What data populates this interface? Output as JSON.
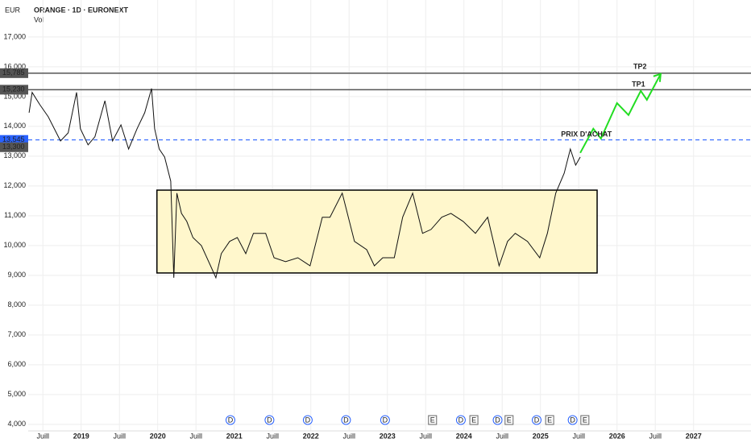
{
  "chart_data": {
    "type": "line",
    "currency": "EUR",
    "title": "ORANGE · 1D · EURONEXT",
    "subtitle": "Vol",
    "xlim": [
      2017.94,
      2027.75
    ],
    "ylim": [
      3.78,
      18.24
    ],
    "grid": true,
    "yticks": [
      {
        "value": 4,
        "label": "4,000"
      },
      {
        "value": 5,
        "label": "5,000"
      },
      {
        "value": 6,
        "label": "6,000"
      },
      {
        "value": 7,
        "label": "7,000"
      },
      {
        "value": 8,
        "label": "8,000"
      },
      {
        "value": 9,
        "label": "9,000"
      },
      {
        "value": 10,
        "label": "10,000"
      },
      {
        "value": 11,
        "label": "11,000"
      },
      {
        "value": 12,
        "label": "12,000"
      },
      {
        "value": 13,
        "label": "13,000"
      },
      {
        "value": 14,
        "label": "14,000"
      },
      {
        "value": 15,
        "label": "15,000"
      },
      {
        "value": 16,
        "label": "16,000"
      },
      {
        "value": 17,
        "label": "17,000"
      }
    ],
    "xticks": [
      {
        "value": 2018.5,
        "label": "Juill"
      },
      2019,
      {
        "value": 2019.5,
        "label": "Juill"
      },
      2020,
      {
        "value": 2020.5,
        "label": "Juill"
      },
      2021,
      {
        "value": 2021.5,
        "label": "Juill"
      },
      2022,
      {
        "value": 2022.5,
        "label": "Juill"
      },
      2023,
      {
        "value": 2023.5,
        "label": "Juill"
      },
      2024,
      {
        "value": 2024.5,
        "label": "Juill"
      },
      2025,
      {
        "value": 2025.5,
        "label": "Juill"
      },
      2026,
      {
        "value": 2026.5,
        "label": "Juill"
      },
      2027
    ],
    "price": {
      "color": "#111111",
      "x": [
        2018.32,
        2018.36,
        2018.46,
        2018.57,
        2018.73,
        2018.83,
        2018.94,
        2018.99,
        2019.09,
        2019.18,
        2019.31,
        2019.41,
        2019.52,
        2019.62,
        2019.73,
        2019.83,
        2019.92,
        2019.96,
        2020.02,
        2020.09,
        2020.17,
        2020.21,
        2020.25,
        2020.31,
        2020.38,
        2020.46,
        2020.57,
        2020.69,
        2020.76,
        2020.83,
        2020.94,
        2021.04,
        2021.15,
        2021.25,
        2021.41,
        2021.52,
        2021.67,
        2021.83,
        2021.99,
        2022.15,
        2022.25,
        2022.41,
        2022.57,
        2022.73,
        2022.83,
        2022.94,
        2023.09,
        2023.2,
        2023.33,
        2023.46,
        2023.57,
        2023.71,
        2023.83,
        2023.99,
        2024.15,
        2024.31,
        2024.46,
        2024.57,
        2024.67,
        2024.83,
        2024.99,
        2025.09,
        2025.2,
        2025.31,
        2025.39,
        2025.46,
        2025.52
      ],
      "values": [
        14.46,
        15.14,
        14.73,
        14.32,
        13.51,
        13.78,
        15.14,
        13.92,
        13.38,
        13.65,
        14.86,
        13.51,
        14.05,
        13.24,
        13.92,
        14.46,
        15.27,
        13.92,
        13.24,
        12.97,
        12.16,
        8.92,
        11.76,
        11.08,
        10.81,
        10.27,
        10.0,
        9.32,
        8.92,
        9.73,
        10.14,
        10.27,
        9.73,
        10.41,
        10.41,
        9.59,
        9.46,
        9.59,
        9.32,
        10.95,
        10.95,
        11.76,
        10.14,
        9.86,
        9.32,
        9.59,
        9.59,
        10.95,
        11.76,
        10.41,
        10.54,
        10.95,
        11.08,
        10.81,
        10.41,
        10.95,
        9.32,
        10.14,
        10.41,
        10.14,
        9.59,
        10.41,
        11.76,
        12.43,
        13.24,
        12.7,
        12.97
      ]
    },
    "levels": [
      {
        "value": 15.785,
        "label": "15,785",
        "color": "#555555",
        "style": "solid"
      },
      {
        "value": 15.23,
        "label": "15,230",
        "color": "#555555",
        "style": "solid"
      },
      {
        "value": 13.545,
        "label": "13,545",
        "color": "#2962ff",
        "style": "dashed"
      },
      {
        "value": 13.3,
        "label": "13,300",
        "color": "#555555",
        "style": "none"
      }
    ],
    "zone": {
      "xlim": [
        2019.99,
        2025.74
      ],
      "ylim": [
        9.08,
        11.86
      ],
      "color": "#fff7cc"
    },
    "projection": {
      "color": "#22dd22",
      "x": [
        2025.52,
        2025.69,
        2025.79,
        2026.0,
        2026.15,
        2026.31,
        2026.39,
        2026.57
      ],
      "values": [
        13.11,
        13.92,
        13.59,
        14.78,
        14.38,
        15.19,
        14.89,
        15.76
      ]
    },
    "annotations": [
      {
        "text": "TP2",
        "x": 2026.3,
        "y": 16.0
      },
      {
        "text": "TP1",
        "x": 2026.28,
        "y": 15.4
      },
      {
        "text": "PRIX D'ACHAT",
        "x": 2025.6,
        "y": 13.72
      }
    ],
    "events": [
      {
        "x": 2020.95,
        "label": "D"
      },
      {
        "x": 2021.46,
        "label": "D"
      },
      {
        "x": 2021.96,
        "label": "D"
      },
      {
        "x": 2022.46,
        "label": "D"
      },
      {
        "x": 2022.97,
        "label": "D"
      },
      {
        "x": 2023.59,
        "label": "E"
      },
      {
        "x": 2023.96,
        "label": "D"
      },
      {
        "x": 2024.13,
        "label": "E"
      },
      {
        "x": 2024.44,
        "label": "D"
      },
      {
        "x": 2024.59,
        "label": "E"
      },
      {
        "x": 2024.95,
        "label": "D"
      },
      {
        "x": 2025.12,
        "label": "E"
      },
      {
        "x": 2025.42,
        "label": "D"
      },
      {
        "x": 2025.58,
        "label": "E"
      }
    ]
  }
}
